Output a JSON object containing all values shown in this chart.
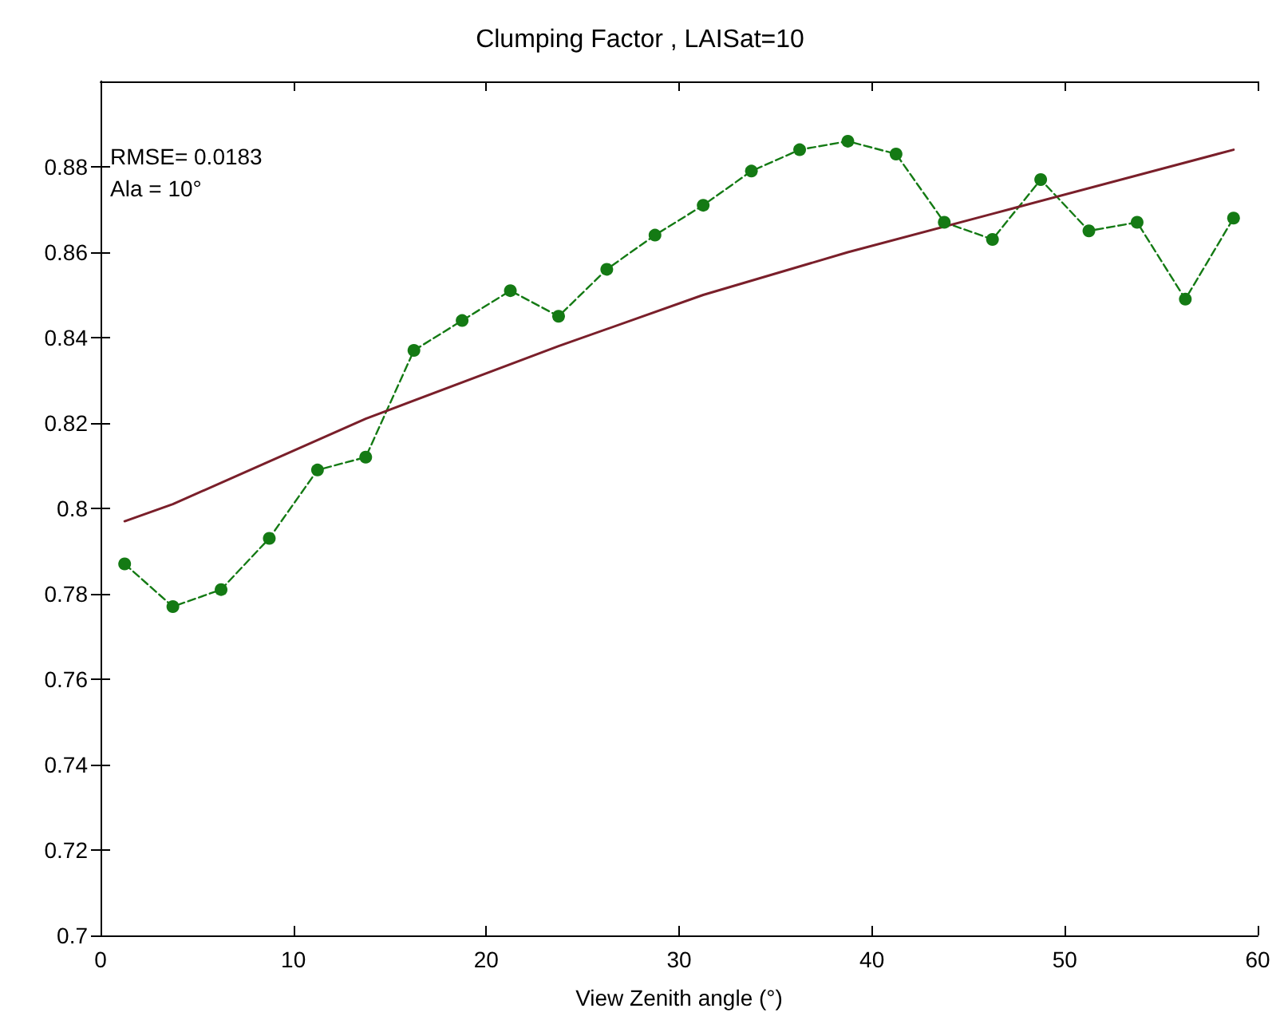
{
  "chart_data": {
    "type": "line",
    "title": "Clumping Factor , LAISat=10",
    "xlabel": "View Zenith angle (°)",
    "annotations": [
      "RMSE= 0.0183",
      "Ala = 10°"
    ],
    "xlim": [
      0,
      60
    ],
    "xticks": [
      0,
      10,
      20,
      30,
      40,
      50,
      60
    ],
    "ylim": [
      0.7,
      0.9
    ],
    "yticks": [
      0.7,
      0.72,
      0.74,
      0.76,
      0.78,
      0.8,
      0.82,
      0.84,
      0.86,
      0.88
    ],
    "series": [
      {
        "color": "#147a14",
        "marker": "circle",
        "line_style": "dashed",
        "x": [
          1.25,
          3.75,
          6.25,
          8.75,
          11.25,
          13.75,
          16.25,
          18.75,
          21.25,
          23.75,
          26.25,
          28.75,
          31.25,
          33.75,
          36.25,
          38.75,
          41.25,
          43.75,
          46.25,
          48.75,
          51.25,
          53.75,
          56.25,
          58.75
        ],
        "values": [
          0.787,
          0.777,
          0.781,
          0.793,
          0.809,
          0.812,
          0.837,
          0.844,
          0.851,
          0.845,
          0.856,
          0.864,
          0.871,
          0.879,
          0.884,
          0.886,
          0.883,
          0.867,
          0.863,
          0.877,
          0.865,
          0.867,
          0.849,
          0.868
        ]
      },
      {
        "color": "#7a1f2a",
        "marker": "none",
        "line_style": "solid",
        "x": [
          1.25,
          3.75,
          8.75,
          13.75,
          23.75,
          31.25,
          38.75,
          46.25,
          58.75
        ],
        "values": [
          0.797,
          0.801,
          0.811,
          0.821,
          0.838,
          0.85,
          0.86,
          0.869,
          0.884
        ]
      }
    ]
  }
}
